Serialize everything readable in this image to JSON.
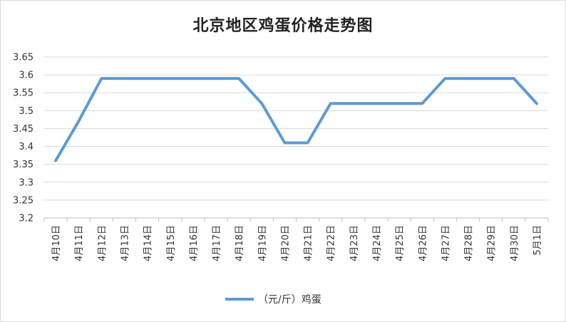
{
  "chart_data": {
    "type": "line",
    "title": "北京地区鸡蛋价格走势图",
    "categories": [
      "4月10日",
      "4月11日",
      "4月12日",
      "4月13日",
      "4月14日",
      "4月15日",
      "4月16日",
      "4月17日",
      "4月18日",
      "4月19日",
      "4月20日",
      "4月21日",
      "4月22日",
      "4月23日",
      "4月24日",
      "4月25日",
      "4月26日",
      "4月27日",
      "4月28日",
      "4月29日",
      "4月30日",
      "5月1日"
    ],
    "series": [
      {
        "name": "（元/斤）鸡蛋",
        "color": "#5b9bd5",
        "values": [
          3.36,
          3.47,
          3.59,
          3.59,
          3.59,
          3.59,
          3.59,
          3.59,
          3.59,
          3.52,
          3.41,
          3.41,
          3.52,
          3.52,
          3.52,
          3.52,
          3.52,
          3.59,
          3.59,
          3.59,
          3.59,
          3.52
        ]
      }
    ],
    "y_ticks": [
      "3.2",
      "3.25",
      "3.3",
      "3.35",
      "3.4",
      "3.45",
      "3.5",
      "3.55",
      "3.6",
      "3.65"
    ],
    "ylim": [
      3.2,
      3.65
    ],
    "grid": true,
    "legend": "bottom"
  }
}
